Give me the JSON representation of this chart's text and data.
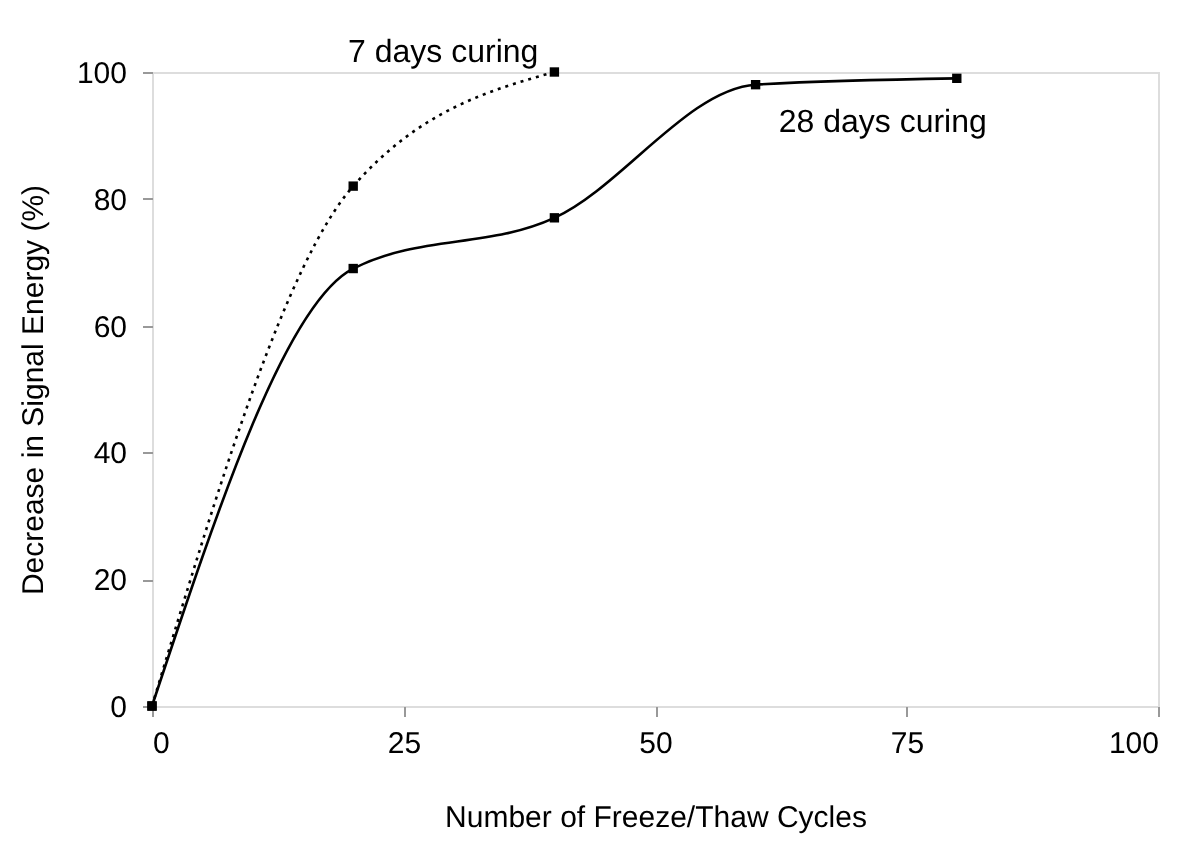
{
  "chart_data": {
    "type": "line",
    "xlabel": "Number of Freeze/Thaw Cycles",
    "ylabel": "Decrease in Signal Energy (%)",
    "xlim": [
      0,
      100
    ],
    "xticks": [
      0,
      25,
      50,
      75,
      100
    ],
    "ylim": [
      0,
      100
    ],
    "yticks": [
      0,
      20,
      40,
      60,
      80,
      100
    ],
    "grid": false,
    "marker": "square",
    "series": [
      {
        "name": "7 days curing",
        "color": "#000000",
        "line_style": "dotted",
        "x": [
          0,
          20,
          40
        ],
        "values": [
          0,
          82,
          100
        ]
      },
      {
        "name": "28 days curing",
        "color": "#000000",
        "line_style": "solid",
        "x": [
          0,
          20,
          40,
          60,
          80
        ],
        "values": [
          0,
          69,
          77,
          98,
          99
        ]
      }
    ]
  }
}
